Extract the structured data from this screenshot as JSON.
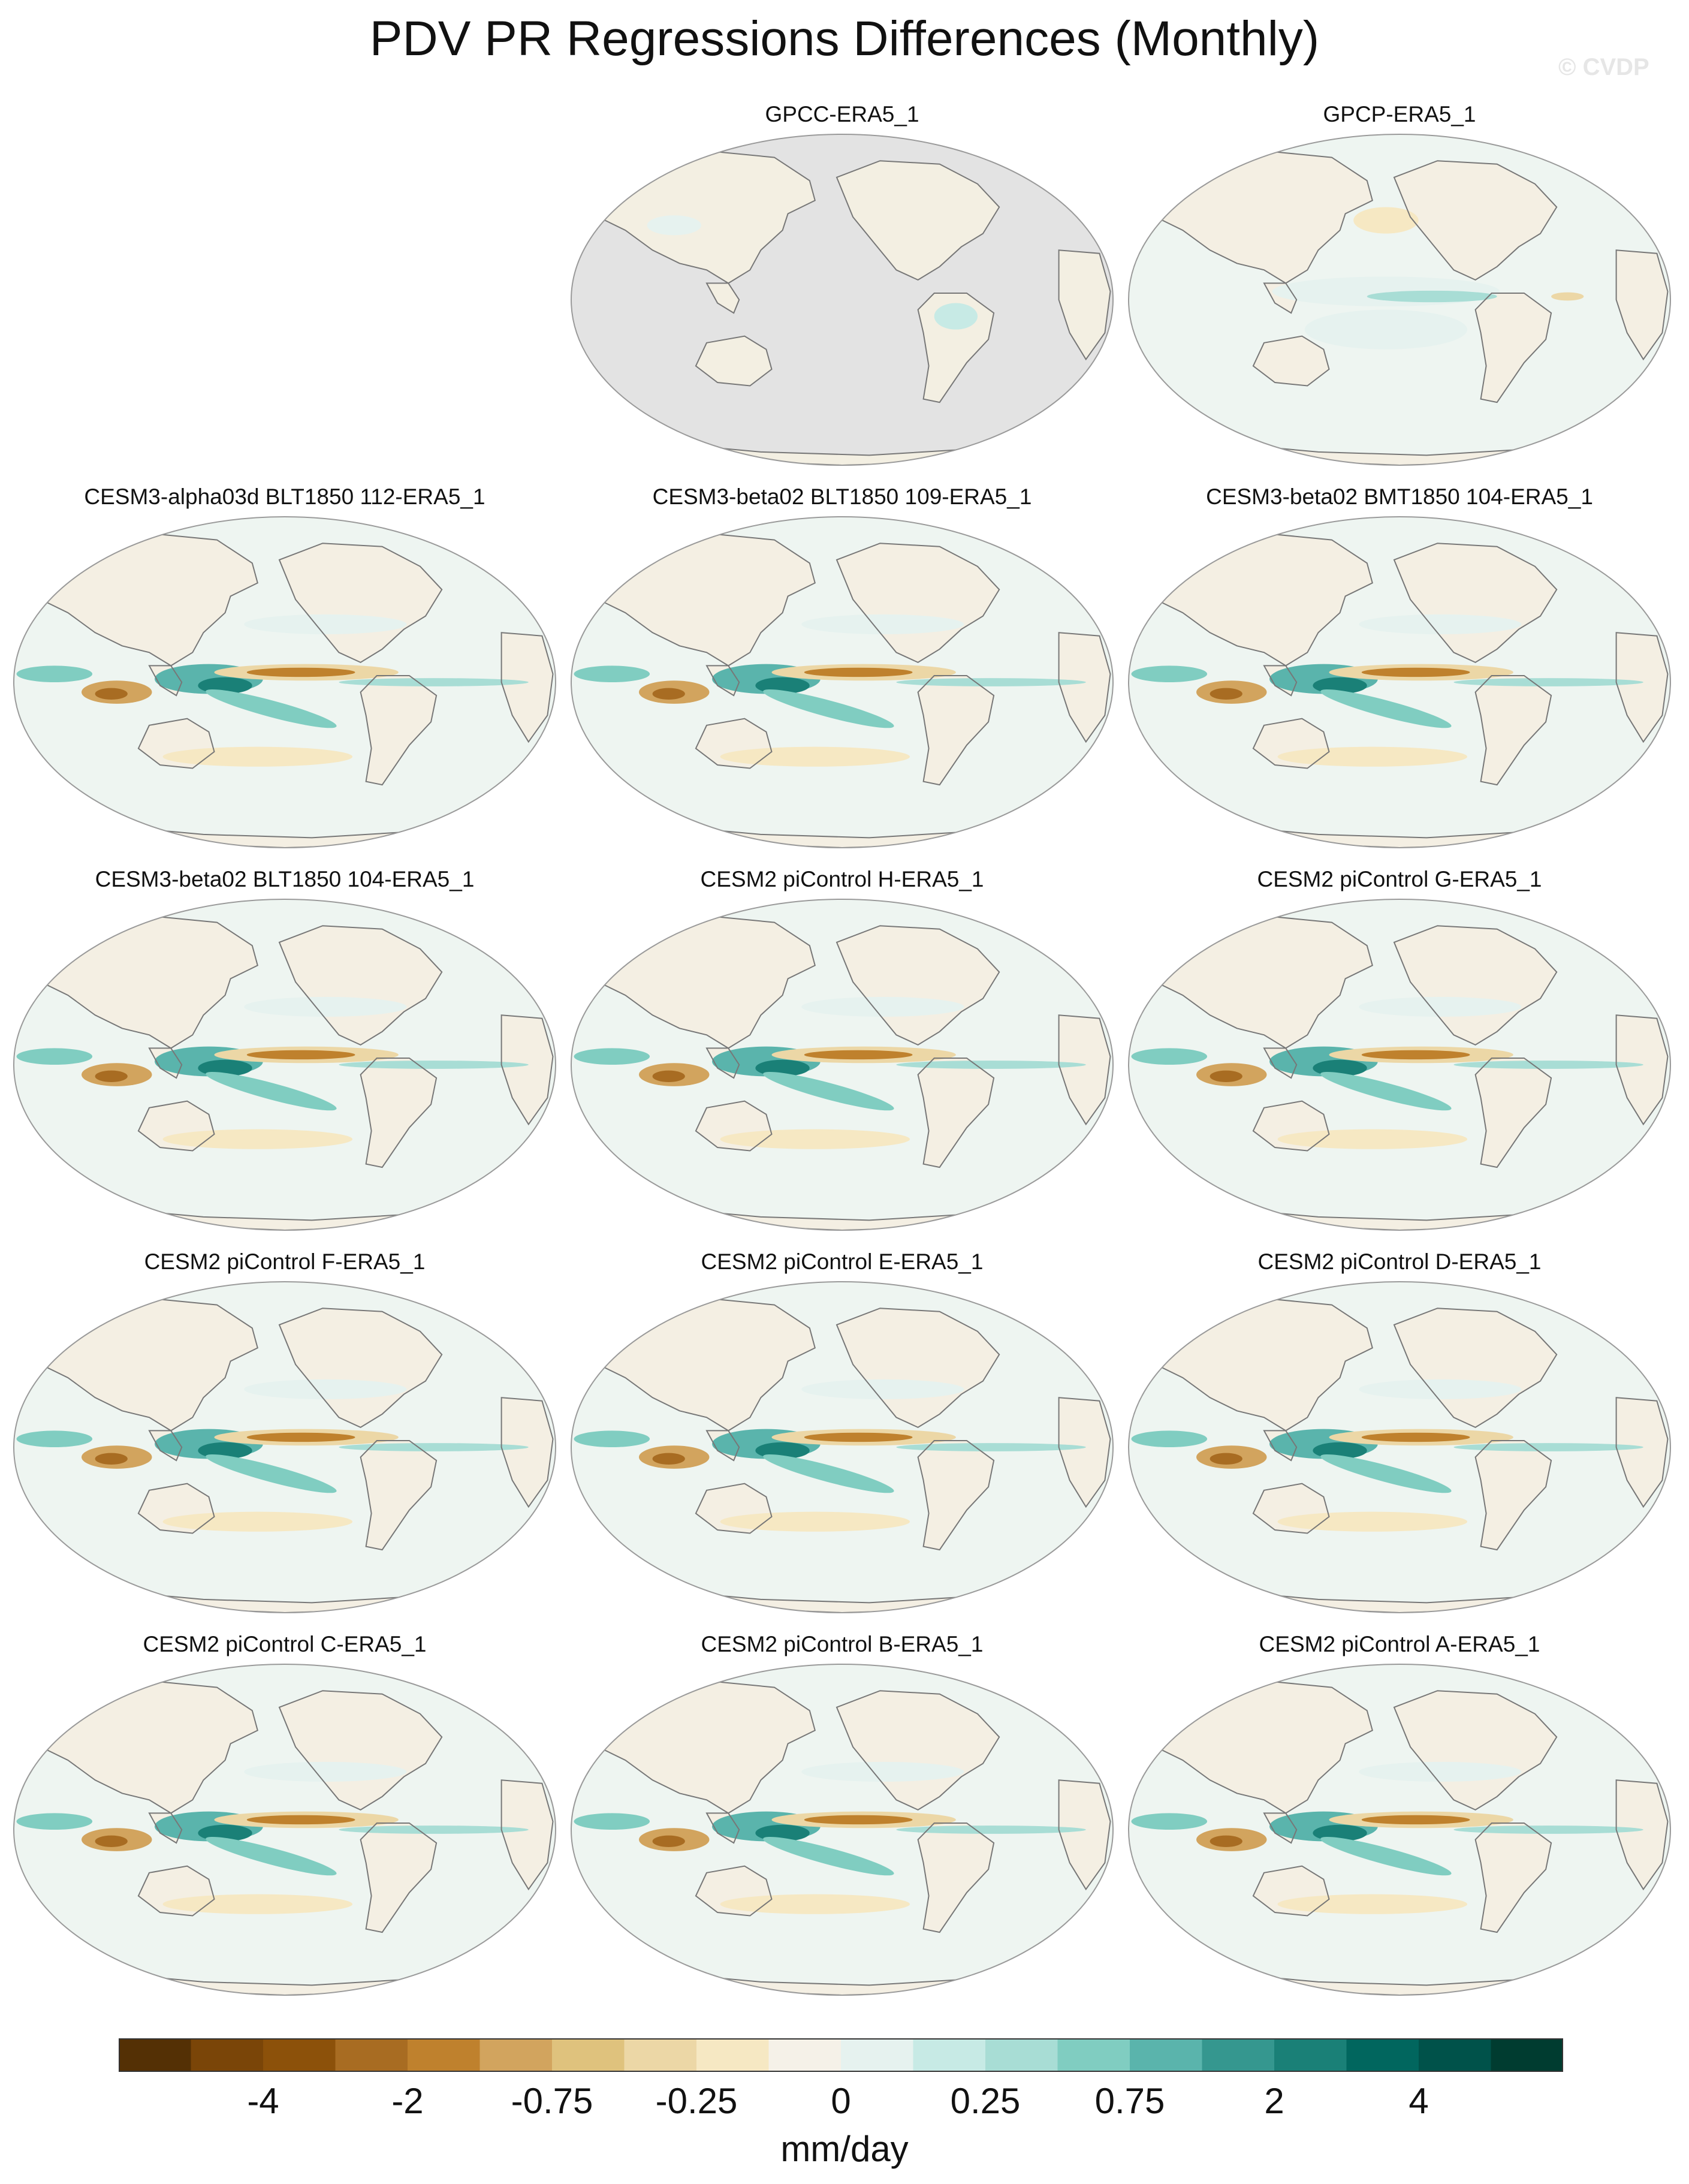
{
  "title": "PDV PR Regressions Differences (Monthly)",
  "credit": "© CVDP",
  "panels": [
    {
      "label": "GPCC-ERA5_1",
      "style": "gpcc"
    },
    {
      "label": "GPCP-ERA5_1",
      "style": "gpcp"
    },
    {
      "label": "CESM3-alpha03d BLT1850 112-ERA5_1",
      "style": "model"
    },
    {
      "label": "CESM3-beta02 BLT1850 109-ERA5_1",
      "style": "model"
    },
    {
      "label": "CESM3-beta02 BMT1850 104-ERA5_1",
      "style": "model"
    },
    {
      "label": "CESM3-beta02 BLT1850 104-ERA5_1",
      "style": "model"
    },
    {
      "label": "CESM2 piControl H-ERA5_1",
      "style": "model"
    },
    {
      "label": "CESM2 piControl G-ERA5_1",
      "style": "model"
    },
    {
      "label": "CESM2 piControl F-ERA5_1",
      "style": "model"
    },
    {
      "label": "CESM2 piControl E-ERA5_1",
      "style": "model"
    },
    {
      "label": "CESM2 piControl D-ERA5_1",
      "style": "model"
    },
    {
      "label": "CESM2 piControl C-ERA5_1",
      "style": "model"
    },
    {
      "label": "CESM2 piControl B-ERA5_1",
      "style": "model"
    },
    {
      "label": "CESM2 piControl A-ERA5_1",
      "style": "model"
    }
  ],
  "colorbar": {
    "units": "mm/day",
    "labels": [
      "-4",
      "-2",
      "-0.75",
      "-0.25",
      "0",
      "0.25",
      "0.75",
      "2",
      "4"
    ],
    "colors": [
      "#543005",
      "#7a4508",
      "#8c510a",
      "#a86c22",
      "#bf812d",
      "#d2a45e",
      "#dfc27d",
      "#ecd7a6",
      "#f6e8c3",
      "#f5f1e8",
      "#e6f2ef",
      "#c7eae5",
      "#a8ddd5",
      "#80cdc1",
      "#5ab4ac",
      "#35978f",
      "#1a8077",
      "#01665e",
      "#00524a",
      "#003c30"
    ]
  }
}
